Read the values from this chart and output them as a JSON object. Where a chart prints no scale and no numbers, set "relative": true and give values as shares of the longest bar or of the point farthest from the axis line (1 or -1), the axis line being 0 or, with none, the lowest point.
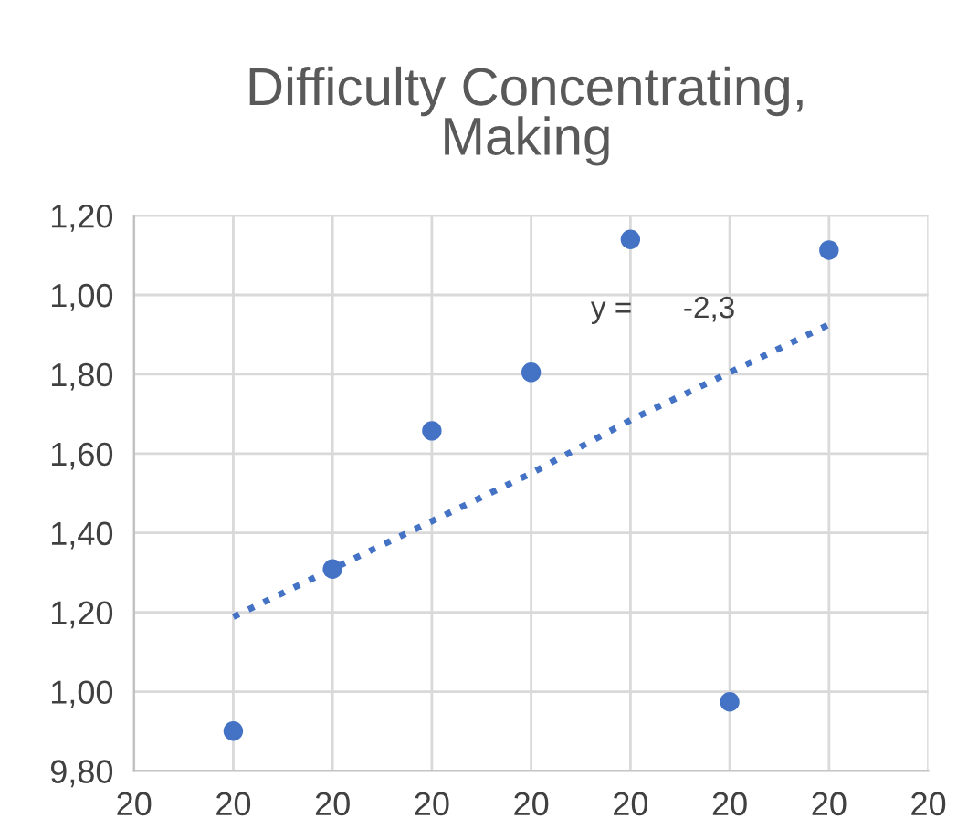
{
  "chart_data": {
    "type": "scatter",
    "title": "Difficulty Concentrating,\nMaking",
    "relative": true,
    "categories": [
      "20",
      "20",
      "20",
      "20",
      "20",
      "20",
      "20",
      "20",
      "20"
    ],
    "series": [
      {
        "color": "#4472c4",
        "marker": "circle",
        "values": [
          null,
          0.075,
          0.38,
          0.64,
          0.75,
          1,
          0.13,
          0.98,
          null
        ]
      },
      {
        "type": "line",
        "color": "#4472c4",
        "line_style": "dotted",
        "marker": "none",
        "values": [
          null,
          0.29,
          0.38,
          0.47,
          0.56,
          0.66,
          0.75,
          0.84,
          null
        ]
      }
    ],
    "annotations": [
      "9,80",
      "1,00",
      "1,20",
      "1,40",
      "1,60",
      "1,80",
      "1,00",
      "1,20",
      "y =      -2,3"
    ],
    "grid": true,
    "legend": false
  }
}
